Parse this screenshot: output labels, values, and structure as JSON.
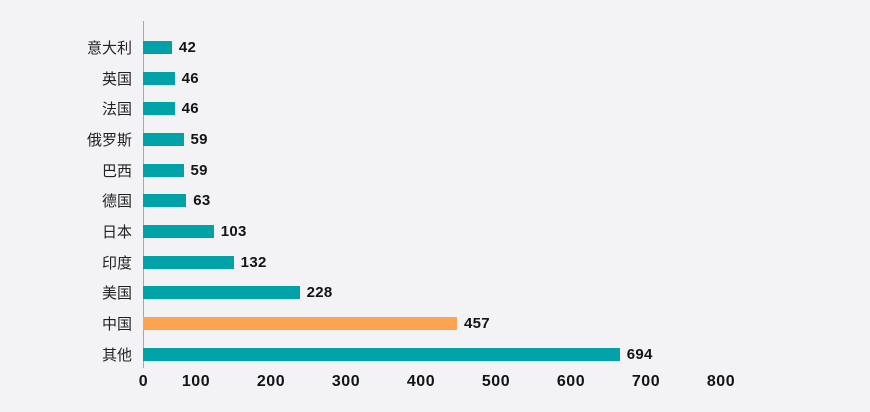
{
  "page": {
    "background_color": "#f3f3f5"
  },
  "chart_data": {
    "type": "bar",
    "orientation": "horizontal",
    "title": "",
    "xlabel": "",
    "ylabel": "",
    "categories": [
      "意大利",
      "英国",
      "法国",
      "俄罗斯",
      "巴西",
      "德国",
      "日本",
      "印度",
      "美国",
      "中国",
      "其他"
    ],
    "values": [
      42,
      46,
      46,
      59,
      59,
      63,
      103,
      132,
      228,
      457,
      694
    ],
    "value_labels_shown": true,
    "highlight_category": "中国",
    "colors": {
      "bar_default": "#00A1A7",
      "bar_highlight": "#FCA44F",
      "axis_line": "#a7a7ad",
      "text": "#141416"
    },
    "xlim": [
      0,
      800
    ],
    "x_ticks": [
      0,
      100,
      200,
      300,
      400,
      500,
      600,
      700,
      800
    ],
    "grid": false,
    "legend": "none"
  }
}
